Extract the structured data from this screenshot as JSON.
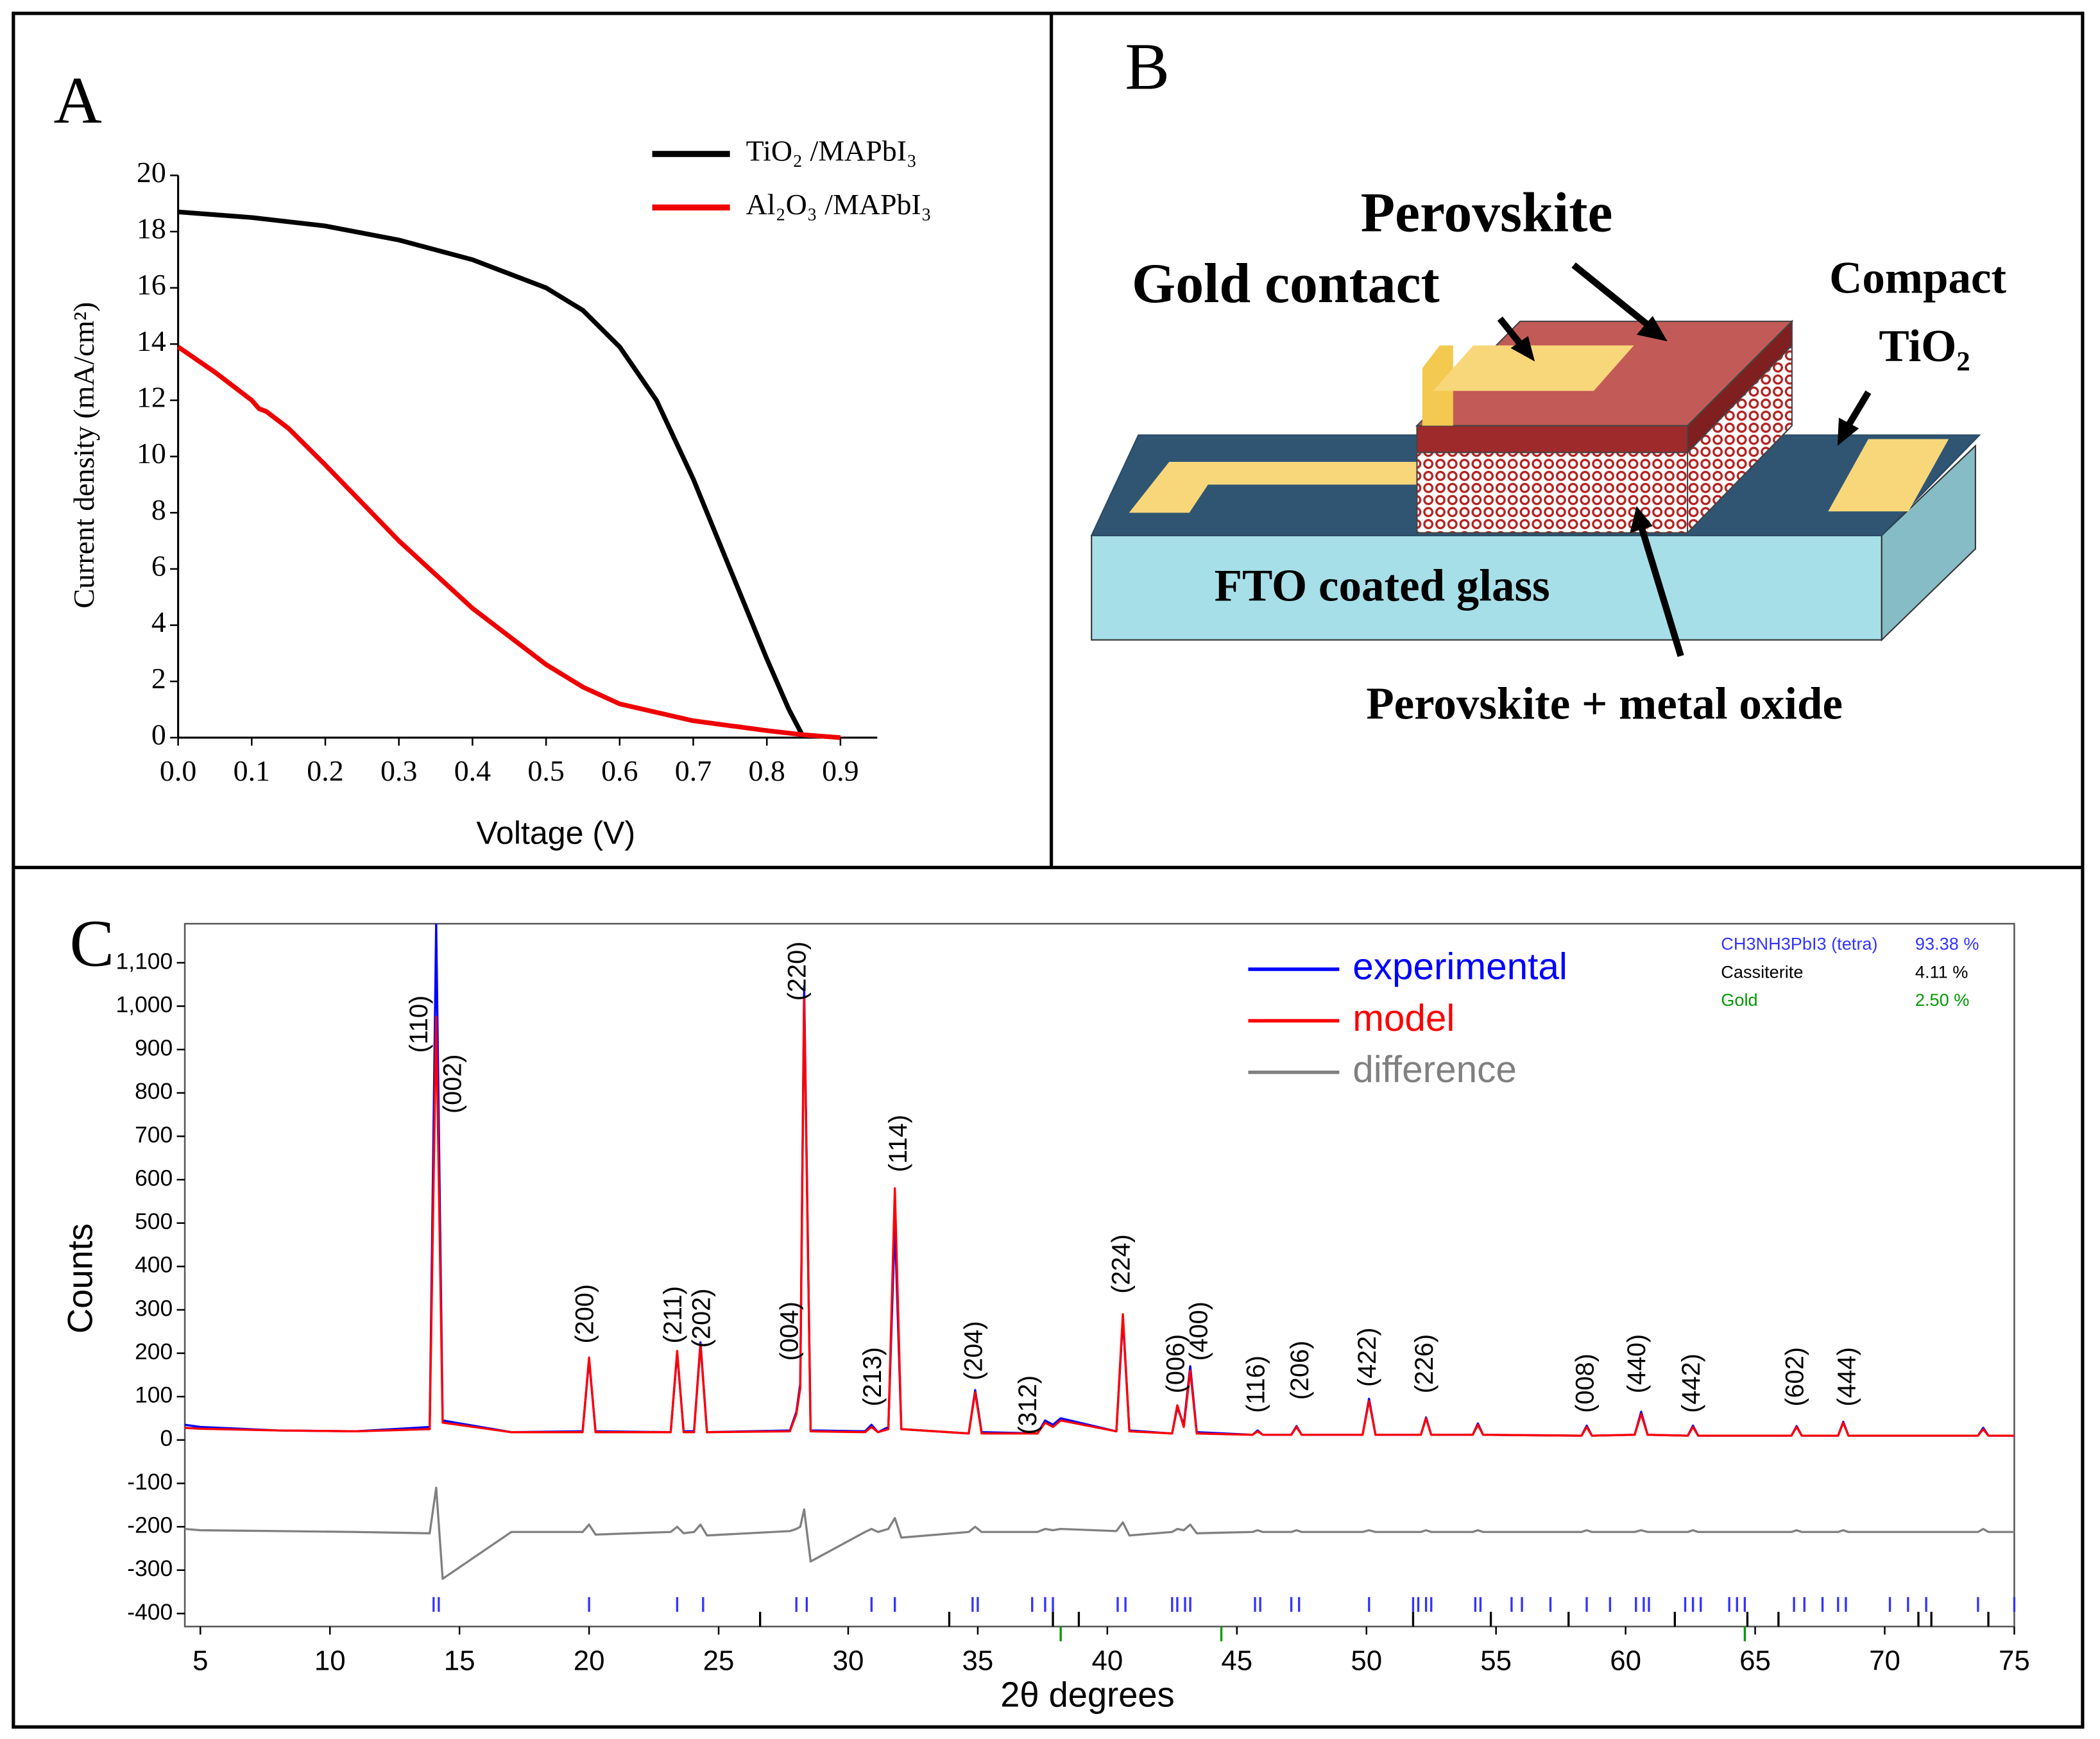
{
  "chart_data": [
    {
      "type": "line",
      "panel_label": "A",
      "x_label": "Voltage (V)",
      "y_label": "Current density (mA/cm²)",
      "xlim": [
        0,
        0.95
      ],
      "ylim": [
        0,
        20
      ],
      "xticks": [
        {
          "value": 0,
          "label": "0.0"
        },
        0.1,
        0.2,
        0.3,
        0.4,
        0.5,
        0.6,
        0.7,
        0.8,
        0.9
      ],
      "yticks": [
        0,
        2,
        4,
        6,
        8,
        10,
        12,
        14,
        16,
        18,
        20
      ],
      "legend": "top-right",
      "grid": false,
      "series": [
        {
          "name": "TiO₂ /MAPbI₃",
          "color": "#000000",
          "x": [
            0,
            0.1,
            0.2,
            0.3,
            0.4,
            0.5,
            0.55,
            0.6,
            0.65,
            0.7,
            0.75,
            0.8,
            0.83,
            0.85
          ],
          "values": [
            18.7,
            18.5,
            18.2,
            17.7,
            17.0,
            16.0,
            15.2,
            13.9,
            12.0,
            9.2,
            6.0,
            2.8,
            1.0,
            0
          ]
        },
        {
          "name": "Al₂O₃ /MAPbI₃",
          "color": "#ee0000",
          "x": [
            0,
            0.05,
            0.1,
            0.11,
            0.12,
            0.15,
            0.2,
            0.3,
            0.4,
            0.5,
            0.55,
            0.6,
            0.7,
            0.8,
            0.85,
            0.9
          ],
          "values": [
            13.9,
            13.0,
            12.0,
            11.7,
            11.6,
            11.0,
            9.7,
            7.0,
            4.6,
            2.6,
            1.8,
            1.2,
            0.6,
            0.25,
            0.1,
            0
          ]
        }
      ]
    },
    {
      "type": "line",
      "panel_label": "C",
      "x_label": "2θ degrees",
      "y_label": "Counts",
      "xlim": [
        4.4,
        75
      ],
      "ylim": [
        -430,
        1190
      ],
      "xticks": [
        5,
        10,
        15,
        20,
        25,
        30,
        35,
        40,
        45,
        50,
        55,
        60,
        65,
        70,
        75
      ],
      "yticks": [
        -400,
        -300,
        -200,
        -100,
        0,
        100,
        200,
        300,
        400,
        500,
        600,
        700,
        800,
        900,
        {
          "value": 1000,
          "label": "1,000"
        },
        {
          "value": 1100,
          "label": "1,100"
        }
      ],
      "legend": "top-right",
      "grid": false,
      "x": [
        4.4,
        5,
        8,
        11,
        13.85,
        14.1,
        14.35,
        17,
        19.75,
        20,
        20.25,
        23.15,
        23.4,
        23.65,
        24.05,
        24.3,
        24.55,
        27.75,
        28,
        28.15,
        28.3,
        28.55,
        30.65,
        30.9,
        31.15,
        31.55,
        31.8,
        32.05,
        34.65,
        34.9,
        35.15,
        37.3,
        37.6,
        37.9,
        38.2,
        40.35,
        40.6,
        40.85,
        42.5,
        42.7,
        42.95,
        43.2,
        43.45,
        45.6,
        45.8,
        46,
        47.1,
        47.3,
        47.5,
        49.85,
        50.1,
        50.35,
        52.1,
        52.3,
        52.5,
        54.1,
        54.3,
        54.5,
        58.3,
        58.5,
        58.7,
        60.35,
        60.6,
        60.85,
        62.4,
        62.6,
        62.8,
        66.4,
        66.6,
        66.8,
        68.2,
        68.4,
        68.6,
        73.6,
        73.8,
        74,
        75
      ],
      "series": [
        {
          "name": "experimental",
          "color": "#0000ff",
          "values": [
            35,
            30,
            22,
            20,
            30,
            1190,
            45,
            18,
            20,
            185,
            20,
            18,
            200,
            20,
            20,
            225,
            18,
            22,
            65,
            130,
            1045,
            22,
            20,
            35,
            18,
            30,
            500,
            25,
            15,
            115,
            18,
            15,
            45,
            35,
            50,
            20,
            280,
            22,
            15,
            75,
            35,
            170,
            18,
            12,
            22,
            12,
            12,
            32,
            12,
            12,
            95,
            12,
            12,
            52,
            12,
            12,
            38,
            12,
            10,
            33,
            10,
            12,
            65,
            12,
            10,
            33,
            10,
            10,
            32,
            10,
            10,
            42,
            10,
            10,
            28,
            10,
            10
          ]
        },
        {
          "name": "model",
          "color": "#ff0000",
          "values": [
            28,
            26,
            22,
            20,
            25,
            975,
            40,
            18,
            18,
            190,
            18,
            18,
            205,
            18,
            18,
            220,
            18,
            20,
            60,
            120,
            1020,
            20,
            18,
            30,
            18,
            25,
            580,
            25,
            15,
            110,
            15,
            15,
            40,
            30,
            45,
            20,
            290,
            20,
            15,
            80,
            30,
            160,
            15,
            12,
            20,
            12,
            12,
            30,
            12,
            12,
            90,
            12,
            12,
            50,
            12,
            12,
            35,
            12,
            10,
            30,
            10,
            12,
            60,
            12,
            10,
            30,
            10,
            10,
            30,
            10,
            10,
            40,
            10,
            10,
            25,
            10,
            10
          ]
        },
        {
          "name": "difference",
          "color": "#808080",
          "values": [
            -205,
            -208,
            -210,
            -212,
            -215,
            -110,
            -320,
            -212,
            -212,
            -195,
            -218,
            -212,
            -200,
            -215,
            -212,
            -195,
            -220,
            -210,
            -205,
            -200,
            -160,
            -280,
            -212,
            -205,
            -212,
            -205,
            -180,
            -225,
            -212,
            -200,
            -212,
            -212,
            -205,
            -208,
            -205,
            -210,
            -190,
            -220,
            -212,
            -205,
            -208,
            -195,
            -215,
            -212,
            -208,
            -212,
            -212,
            -208,
            -212,
            -212,
            -208,
            -212,
            -212,
            -208,
            -212,
            -212,
            -208,
            -212,
            -212,
            -208,
            -212,
            -212,
            -208,
            -212,
            -212,
            -208,
            -212,
            -212,
            -208,
            -212,
            -212,
            -208,
            -212,
            -212,
            -205,
            -212,
            -212
          ]
        }
      ],
      "peak_labels": [
        {
          "text": "(110)",
          "x": 13.5,
          "y": 880
        },
        {
          "text": "(002)",
          "x": 14.8,
          "y": 740
        },
        {
          "text": "(200)",
          "x": 19.9,
          "y": 210
        },
        {
          "text": "(211)",
          "x": 23.3,
          "y": 210
        },
        {
          "text": "(202)",
          "x": 24.4,
          "y": 200
        },
        {
          "text": "(004)",
          "x": 27.8,
          "y": 170
        },
        {
          "text": "(220)",
          "x": 28.1,
          "y": 1000
        },
        {
          "text": "(213)",
          "x": 31.0,
          "y": 65
        },
        {
          "text": "(114)",
          "x": 32.0,
          "y": 605
        },
        {
          "text": "(204)",
          "x": 34.9,
          "y": 125
        },
        {
          "text": "(312)",
          "x": 37.0,
          "y": 0
        },
        {
          "text": "(224)",
          "x": 40.6,
          "y": 325
        },
        {
          "text": "(006)",
          "x": 42.7,
          "y": 95
        },
        {
          "text": "(400)",
          "x": 43.6,
          "y": 170
        },
        {
          "text": "(116)",
          "x": 45.8,
          "y": 50
        },
        {
          "text": "(206)",
          "x": 47.5,
          "y": 80
        },
        {
          "text": "(422)",
          "x": 50.1,
          "y": 110
        },
        {
          "text": "(226)",
          "x": 52.3,
          "y": 95
        },
        {
          "text": "(008)",
          "x": 58.5,
          "y": 50
        },
        {
          "text": "(440)",
          "x": 60.5,
          "y": 95
        },
        {
          "text": "(442)",
          "x": 62.6,
          "y": 50
        },
        {
          "text": "(602)",
          "x": 66.6,
          "y": 65
        },
        {
          "text": "(444)",
          "x": 68.6,
          "y": 65
        }
      ],
      "phases": [
        {
          "name": "CH3NH3PbI3 (tetra)",
          "share": "93.38 %",
          "color": "#3333ff",
          "reflections": [
            14.0,
            14.2,
            20.0,
            23.4,
            24.4,
            28.0,
            28.4,
            30.9,
            31.8,
            34.8,
            35.0,
            37.1,
            37.6,
            37.9,
            40.4,
            40.7,
            42.5,
            42.7,
            43.0,
            43.2,
            45.7,
            45.9,
            47.1,
            47.4,
            50.1,
            51.8,
            52.0,
            52.3,
            52.5,
            54.2,
            54.4,
            55.6,
            56.0,
            57.1,
            58.5,
            59.4,
            60.4,
            60.7,
            60.9,
            62.3,
            62.6,
            62.9,
            64.0,
            64.3,
            64.6,
            66.5,
            66.9,
            67.6,
            68.2,
            68.5,
            70.2,
            70.9,
            71.6,
            73.6,
            75.0
          ]
        },
        {
          "name": "Cassiterite",
          "share": "4.11 %",
          "color": "#000000",
          "reflections": [
            26.6,
            33.9,
            37.9,
            38.9,
            51.8,
            54.8,
            57.8,
            61.9,
            64.7,
            65.9,
            71.3,
            71.8,
            74.0
          ]
        },
        {
          "name": "Gold",
          "share": "2.50 %",
          "color": "#009900",
          "reflections": [
            38.2,
            44.4,
            64.6
          ]
        }
      ]
    }
  ],
  "diagram": {
    "panel_label": "B",
    "labels": {
      "perovskite": "Perovskite",
      "gold_contact": "Gold contact",
      "compact": "Compact",
      "tio2": "TiO₂",
      "fto": "FTO coated glass",
      "perovskite_oxide": "Perovskite + metal oxide"
    }
  }
}
